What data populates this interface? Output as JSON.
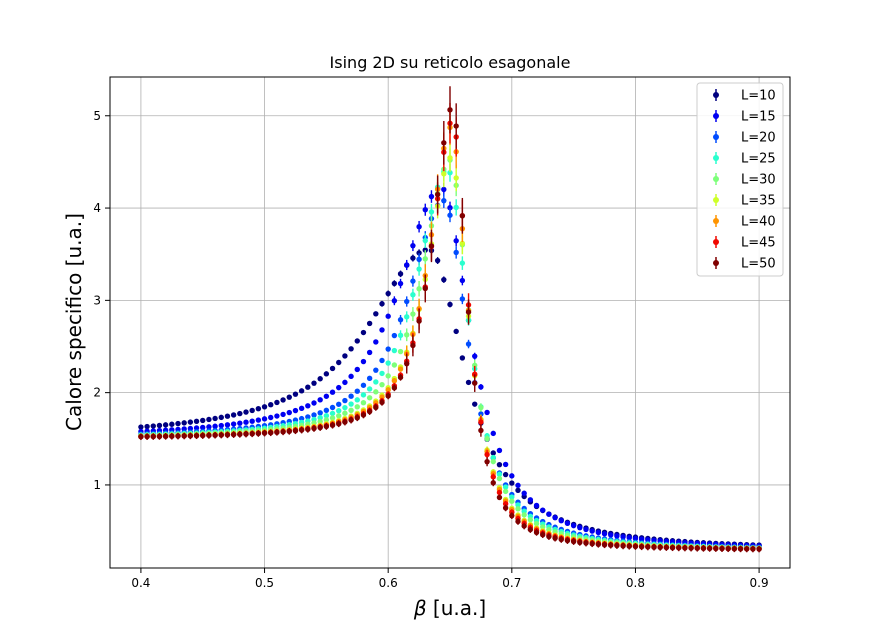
{
  "chart_data": {
    "type": "scatter",
    "title": "Ising 2D su reticolo esagonale",
    "xlabel_symbol": "β",
    "xlabel_unit": " [u.a.]",
    "ylabel": "Calore specifico [u.a.]",
    "xlim": [
      0.375,
      0.925
    ],
    "ylim": [
      0.1,
      5.42
    ],
    "xticks": [
      {
        "value": 0.4,
        "label": "0.4"
      },
      {
        "value": 0.5,
        "label": "0.5"
      },
      {
        "value": 0.6,
        "label": "0.6"
      },
      {
        "value": 0.7,
        "label": "0.7"
      },
      {
        "value": 0.8,
        "label": "0.8"
      },
      {
        "value": 0.9,
        "label": "0.9"
      }
    ],
    "yticks": [
      {
        "value": 1,
        "label": "1"
      },
      {
        "value": 2,
        "label": "2"
      },
      {
        "value": 3,
        "label": "3"
      },
      {
        "value": 4,
        "label": "4"
      },
      {
        "value": 5,
        "label": "5"
      }
    ],
    "grid": true,
    "legend_position": "top-right",
    "x": [
      0.4,
      0.405,
      0.41,
      0.415,
      0.42,
      0.425,
      0.43,
      0.435,
      0.44,
      0.445,
      0.45,
      0.455,
      0.46,
      0.465,
      0.47,
      0.475,
      0.48,
      0.485,
      0.49,
      0.495,
      0.5,
      0.505,
      0.51,
      0.515,
      0.52,
      0.525,
      0.53,
      0.535,
      0.54,
      0.545,
      0.55,
      0.555,
      0.56,
      0.565,
      0.57,
      0.575,
      0.58,
      0.585,
      0.59,
      0.595,
      0.6,
      0.605,
      0.61,
      0.615,
      0.62,
      0.625,
      0.63,
      0.635,
      0.64,
      0.645,
      0.65,
      0.655,
      0.66,
      0.665,
      0.67,
      0.675,
      0.68,
      0.685,
      0.69,
      0.695,
      0.7,
      0.705,
      0.71,
      0.715,
      0.72,
      0.725,
      0.73,
      0.735,
      0.74,
      0.745,
      0.75,
      0.755,
      0.76,
      0.765,
      0.77,
      0.775,
      0.78,
      0.785,
      0.79,
      0.795,
      0.8,
      0.805,
      0.81,
      0.815,
      0.82,
      0.825,
      0.83,
      0.835,
      0.84,
      0.845,
      0.85,
      0.855,
      0.86,
      0.865,
      0.87,
      0.875,
      0.88,
      0.885,
      0.89,
      0.895,
      0.9
    ],
    "series": [
      {
        "name": "L=10",
        "color": "#000080",
        "peak_value": 3.55,
        "peak_x": 0.633,
        "sigma_left": 0.06,
        "sigma_right": 0.036,
        "base_left": 1.5,
        "base_right": 0.29,
        "err": 0.02
      },
      {
        "name": "L=15",
        "color": "#0000f1",
        "peak_value": 4.22,
        "peak_x": 0.643,
        "sigma_left": 0.042,
        "sigma_right": 0.029,
        "base_left": 1.5,
        "base_right": 0.29,
        "err": 0.03
      },
      {
        "name": "L=20",
        "color": "#004cff",
        "peak_value": 4.08,
        "peak_x": 0.645,
        "sigma_left": 0.035,
        "sigma_right": 0.024,
        "base_left": 1.5,
        "base_right": 0.29,
        "err": 0.035
      },
      {
        "name": "L=25",
        "color": "#29ffce",
        "peak_value": 4.42,
        "peak_x": 0.648,
        "sigma_left": 0.03,
        "sigma_right": 0.021,
        "base_left": 1.5,
        "base_right": 0.29,
        "err": 0.04
      },
      {
        "name": "L=30",
        "color": "#7dff7a",
        "peak_value": 4.52,
        "peak_x": 0.65,
        "sigma_left": 0.027,
        "sigma_right": 0.019,
        "base_left": 1.5,
        "base_right": 0.29,
        "err": 0.05
      },
      {
        "name": "L=35",
        "color": "#ceff29",
        "peak_value": 4.55,
        "peak_x": 0.651,
        "sigma_left": 0.024,
        "sigma_right": 0.017,
        "base_left": 1.5,
        "base_right": 0.29,
        "err": 0.06
      },
      {
        "name": "L=40",
        "color": "#ff9400",
        "peak_value": 4.88,
        "peak_x": 0.651,
        "sigma_left": 0.022,
        "sigma_right": 0.016,
        "base_left": 1.5,
        "base_right": 0.29,
        "err": 0.07
      },
      {
        "name": "L=45",
        "color": "#f10800",
        "peak_value": 4.95,
        "peak_x": 0.652,
        "sigma_left": 0.021,
        "sigma_right": 0.015,
        "base_left": 1.5,
        "base_right": 0.29,
        "err": 0.08
      },
      {
        "name": "L=50",
        "color": "#800000",
        "peak_value": 5.1,
        "peak_x": 0.652,
        "sigma_left": 0.02,
        "sigma_right": 0.014,
        "base_left": 1.5,
        "base_right": 0.29,
        "err": 0.09
      }
    ]
  }
}
